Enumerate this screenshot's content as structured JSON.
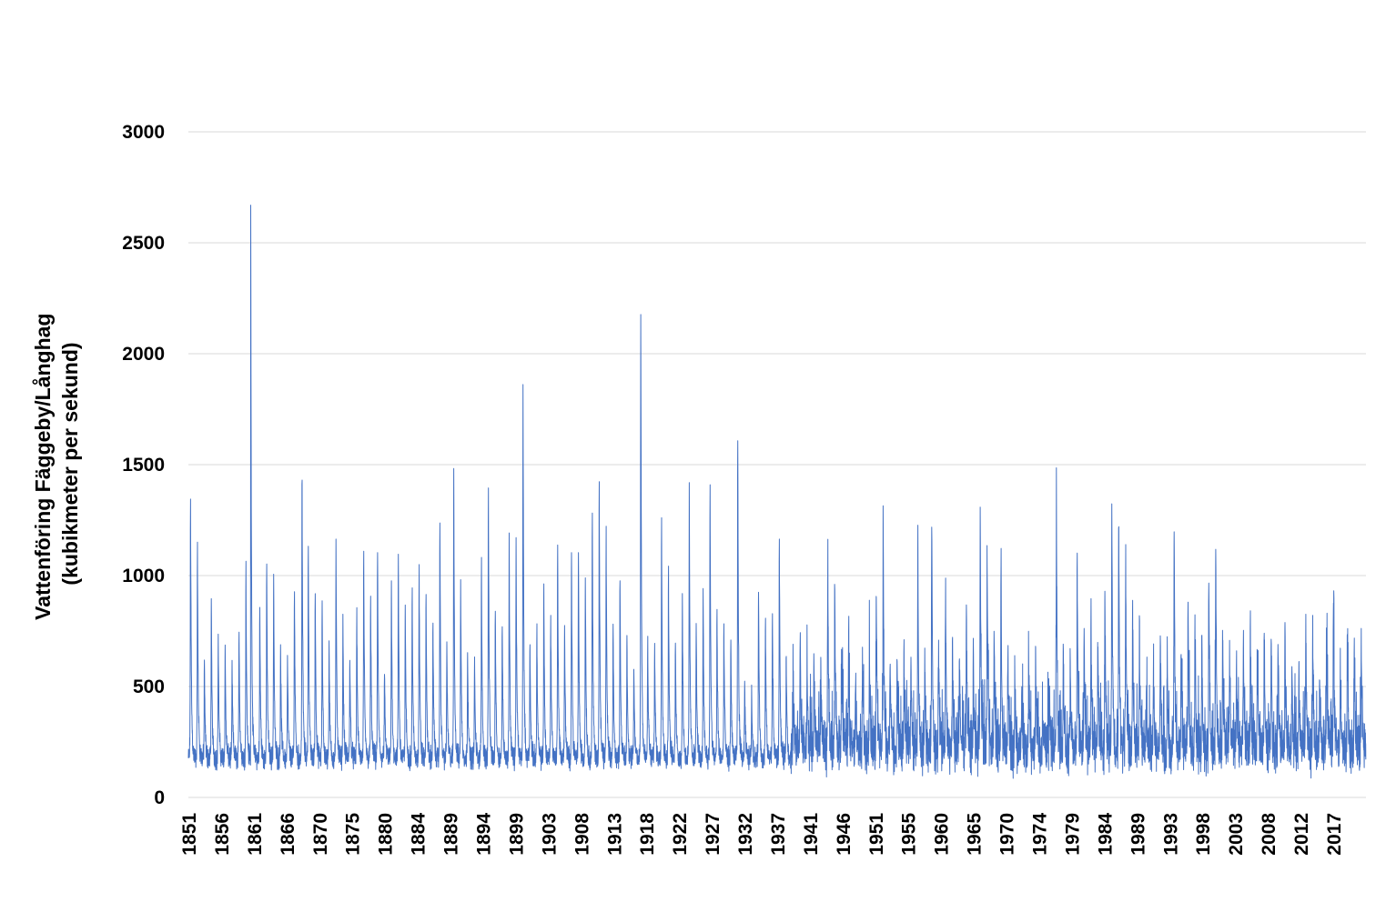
{
  "chart_data": {
    "type": "line",
    "title": "",
    "xlabel": "",
    "ylabel_lines": [
      "Vattenföring Fäggeby/Långhag",
      "(kubikmeter per sekund)"
    ],
    "x_range": [
      1851,
      2021
    ],
    "ylim": [
      0,
      3000
    ],
    "y_ticks": [
      0,
      500,
      1000,
      1500,
      2000,
      2500,
      3000
    ],
    "x_tick_labels": [
      "1851",
      "1856",
      "1861",
      "1866",
      "1870",
      "1875",
      "1880",
      "1884",
      "1889",
      "1894",
      "1899",
      "1903",
      "1908",
      "1913",
      "1918",
      "1922",
      "1927",
      "1932",
      "1937",
      "1941",
      "1946",
      "1951",
      "1955",
      "1960",
      "1965",
      "1970",
      "1974",
      "1979",
      "1984",
      "1989",
      "1993",
      "1998",
      "2003",
      "2008",
      "2012",
      "2017"
    ],
    "grid": true,
    "legend": "none",
    "series": [
      {
        "color": "#4472C4",
        "annual_peaks": [
          [
            1851.3,
            1500
          ],
          [
            1852.3,
            1250
          ],
          [
            1853.3,
            640
          ],
          [
            1854.3,
            970
          ],
          [
            1855.3,
            790
          ],
          [
            1856.3,
            720
          ],
          [
            1857.3,
            650
          ],
          [
            1858.3,
            840
          ],
          [
            1859.3,
            1150
          ],
          [
            1860.0,
            2650
          ],
          [
            1861.3,
            930
          ],
          [
            1862.3,
            1160
          ],
          [
            1863.3,
            1100
          ],
          [
            1864.3,
            750
          ],
          [
            1865.3,
            680
          ],
          [
            1866.3,
            1050
          ],
          [
            1867.4,
            1600
          ],
          [
            1868.3,
            1280
          ],
          [
            1869.3,
            1030
          ],
          [
            1870.3,
            940
          ],
          [
            1871.3,
            760
          ],
          [
            1872.3,
            1270
          ],
          [
            1873.3,
            870
          ],
          [
            1874.3,
            700
          ],
          [
            1875.3,
            910
          ],
          [
            1876.3,
            1250
          ],
          [
            1877.3,
            1000
          ],
          [
            1878.3,
            1210
          ],
          [
            1879.3,
            620
          ],
          [
            1880.3,
            1070
          ],
          [
            1881.3,
            1190
          ],
          [
            1882.3,
            940
          ],
          [
            1883.3,
            1030
          ],
          [
            1884.3,
            1130
          ],
          [
            1885.3,
            1000
          ],
          [
            1886.3,
            870
          ],
          [
            1887.3,
            1380
          ],
          [
            1888.3,
            780
          ],
          [
            1889.3,
            1630
          ],
          [
            1890.3,
            1050
          ],
          [
            1891.3,
            720
          ],
          [
            1892.3,
            680
          ],
          [
            1893.3,
            1160
          ],
          [
            1894.3,
            1540
          ],
          [
            1895.3,
            930
          ],
          [
            1896.3,
            850
          ],
          [
            1897.3,
            1280
          ],
          [
            1898.3,
            1280
          ],
          [
            1899.3,
            2030
          ],
          [
            1900.3,
            760
          ],
          [
            1901.3,
            820
          ],
          [
            1902.3,
            1050
          ],
          [
            1903.3,
            900
          ],
          [
            1904.3,
            1220
          ],
          [
            1905.3,
            870
          ],
          [
            1906.3,
            1230
          ],
          [
            1907.3,
            1220
          ],
          [
            1908.3,
            1100
          ],
          [
            1909.3,
            1440
          ],
          [
            1910.3,
            1580
          ],
          [
            1911.3,
            1320
          ],
          [
            1912.3,
            840
          ],
          [
            1913.3,
            1100
          ],
          [
            1914.3,
            800
          ],
          [
            1915.3,
            650
          ],
          [
            1916.3,
            2420
          ],
          [
            1917.3,
            760
          ],
          [
            1918.3,
            750
          ],
          [
            1919.3,
            1400
          ],
          [
            1920.3,
            1120
          ],
          [
            1921.3,
            780
          ],
          [
            1922.3,
            1000
          ],
          [
            1923.3,
            1530
          ],
          [
            1924.3,
            860
          ],
          [
            1925.3,
            1050
          ],
          [
            1926.3,
            1560
          ],
          [
            1927.3,
            930
          ],
          [
            1928.3,
            850
          ],
          [
            1929.3,
            790
          ],
          [
            1930.3,
            1780
          ],
          [
            1931.3,
            560
          ],
          [
            1932.3,
            520
          ],
          [
            1933.3,
            1040
          ],
          [
            1934.3,
            870
          ],
          [
            1935.3,
            930
          ],
          [
            1936.3,
            1300
          ],
          [
            1937.3,
            720
          ],
          [
            1938.3,
            580
          ],
          [
            1939.3,
            820
          ],
          [
            1940.3,
            680
          ],
          [
            1941.3,
            710
          ],
          [
            1942.3,
            620
          ],
          [
            1943.3,
            1180
          ],
          [
            1944.3,
            1090
          ],
          [
            1945.3,
            760
          ],
          [
            1946.3,
            750
          ],
          [
            1947.3,
            520
          ],
          [
            1948.3,
            690
          ],
          [
            1949.3,
            740
          ],
          [
            1950.3,
            1050
          ],
          [
            1951.3,
            1280
          ],
          [
            1952.3,
            690
          ],
          [
            1953.3,
            730
          ],
          [
            1954.3,
            710
          ],
          [
            1955.3,
            680
          ],
          [
            1956.3,
            1280
          ],
          [
            1957.3,
            680
          ],
          [
            1958.3,
            1400
          ],
          [
            1959.3,
            730
          ],
          [
            1960.3,
            1040
          ],
          [
            1961.3,
            770
          ],
          [
            1962.3,
            640
          ],
          [
            1963.3,
            940
          ],
          [
            1964.3,
            690
          ],
          [
            1965.3,
            1440
          ],
          [
            1966.3,
            1210
          ],
          [
            1967.3,
            790
          ],
          [
            1968.3,
            1110
          ],
          [
            1969.3,
            680
          ],
          [
            1970.3,
            520
          ],
          [
            1971.3,
            480
          ],
          [
            1972.3,
            550
          ],
          [
            1973.3,
            680
          ],
          [
            1974.3,
            420
          ],
          [
            1975.3,
            520
          ],
          [
            1976.3,
            1420
          ],
          [
            1977.3,
            750
          ],
          [
            1978.3,
            700
          ],
          [
            1979.3,
            1170
          ],
          [
            1980.3,
            860
          ],
          [
            1981.3,
            800
          ],
          [
            1982.3,
            740
          ],
          [
            1983.3,
            1020
          ],
          [
            1984.3,
            1500
          ],
          [
            1985.3,
            1400
          ],
          [
            1986.3,
            1190
          ],
          [
            1987.3,
            980
          ],
          [
            1988.3,
            780
          ],
          [
            1989.3,
            560
          ],
          [
            1990.3,
            600
          ],
          [
            1991.3,
            780
          ],
          [
            1992.3,
            700
          ],
          [
            1993.3,
            1300
          ],
          [
            1994.3,
            730
          ],
          [
            1995.3,
            980
          ],
          [
            1996.3,
            850
          ],
          [
            1997.3,
            780
          ],
          [
            1998.3,
            1080
          ],
          [
            1999.3,
            1230
          ],
          [
            2000.3,
            820
          ],
          [
            2001.3,
            700
          ],
          [
            2002.3,
            660
          ],
          [
            2003.3,
            780
          ],
          [
            2004.3,
            880
          ],
          [
            2005.3,
            700
          ],
          [
            2006.3,
            820
          ],
          [
            2007.3,
            830
          ],
          [
            2008.3,
            780
          ],
          [
            2009.3,
            820
          ],
          [
            2010.3,
            640
          ],
          [
            2011.3,
            600
          ],
          [
            2012.3,
            860
          ],
          [
            2013.3,
            840
          ],
          [
            2014.3,
            580
          ],
          [
            2015.3,
            820
          ],
          [
            2016.3,
            1020
          ],
          [
            2017.3,
            600
          ],
          [
            2018.3,
            790
          ],
          [
            2019.3,
            780
          ],
          [
            2020.3,
            750
          ]
        ]
      }
    ]
  }
}
